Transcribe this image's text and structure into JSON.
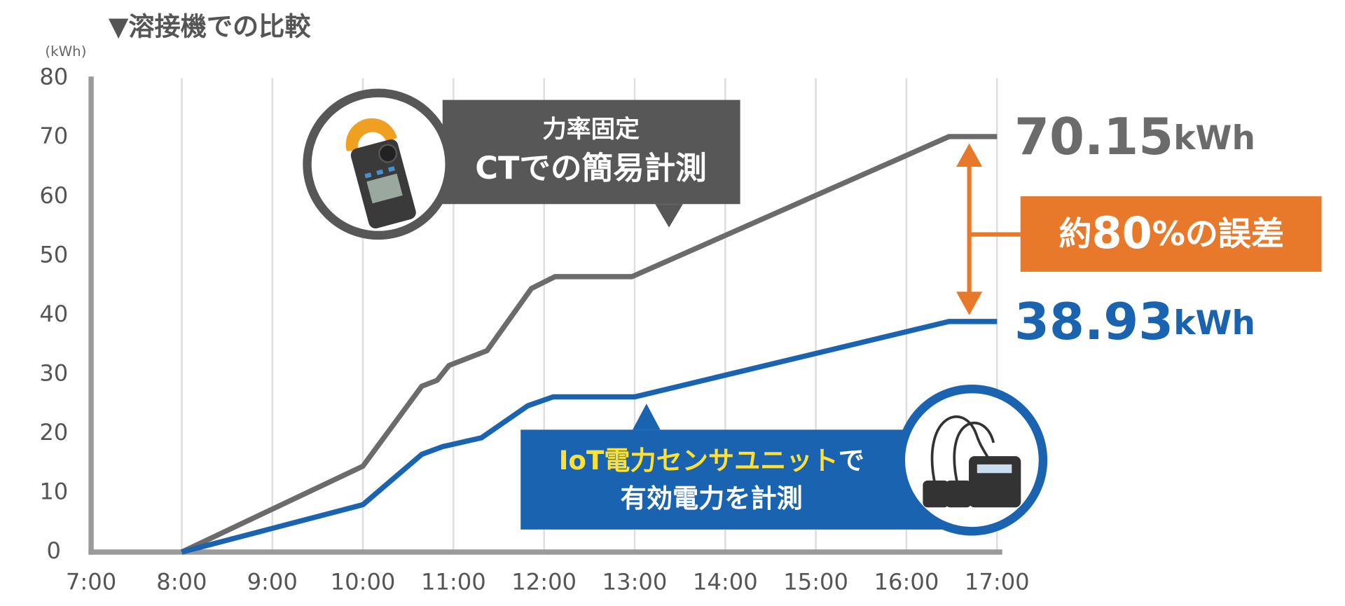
{
  "chart_data": {
    "type": "line",
    "title": "▼溶接機での比較",
    "y_unit": "(kWh)",
    "xlim": [
      7,
      17
    ],
    "xticks": [
      {
        "value": 7,
        "label": "7:00"
      },
      {
        "value": 8,
        "label": "8:00"
      },
      {
        "value": 9,
        "label": "9:00"
      },
      {
        "value": 10,
        "label": "10:00"
      },
      {
        "value": 11,
        "label": "11:00"
      },
      {
        "value": 12,
        "label": "12:00"
      },
      {
        "value": 13,
        "label": "13:00"
      },
      {
        "value": 14,
        "label": "14:00"
      },
      {
        "value": 15,
        "label": "15:00"
      },
      {
        "value": 16,
        "label": "16:00"
      },
      {
        "value": 17,
        "label": "17:00"
      }
    ],
    "ylim": [
      0,
      80
    ],
    "yticks": [
      0,
      10,
      20,
      30,
      40,
      50,
      60,
      70,
      80
    ],
    "grid": true,
    "series": [
      {
        "color": "#6b6b6b",
        "x": [
          8,
          10,
          10.65,
          10.82,
          10.95,
          11.37,
          11.86,
          12.12,
          12.97,
          16.47,
          17
        ],
        "values": [
          0,
          14.5,
          28,
          29,
          31.5,
          34,
          44.5,
          46.5,
          46.5,
          70.15,
          70.15
        ],
        "end_label": {
          "value": "70.15",
          "unit": "kWh"
        }
      },
      {
        "color": "#1a63b0",
        "x": [
          8,
          10,
          10.65,
          10.88,
          11.31,
          11.82,
          12.1,
          13,
          16.47,
          17
        ],
        "values": [
          0,
          8,
          16.5,
          17.8,
          19.3,
          24.7,
          26.2,
          26.2,
          38.93,
          38.93
        ],
        "end_label": {
          "value": "38.93",
          "unit": "kWh"
        }
      }
    ],
    "callouts": [
      {
        "lines": [
          "力率固定",
          "CTでの簡易計測"
        ]
      },
      {
        "line1_highlight": "IoT電力センサユニット",
        "line1_rest": "で",
        "line2": "有効電力を計測"
      }
    ],
    "difference_label": {
      "prefix": "約",
      "number": "80",
      "suffix": "%の誤差"
    }
  }
}
